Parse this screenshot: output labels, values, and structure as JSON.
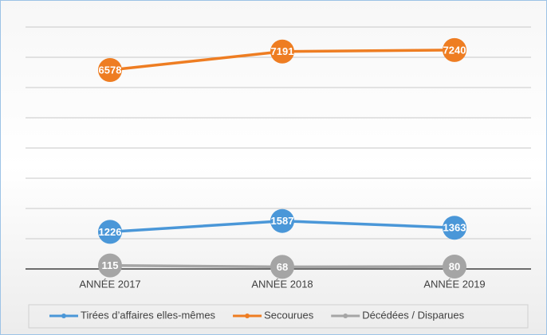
{
  "chart_data": {
    "type": "line",
    "categories": [
      "ANNÉE 2017",
      "ANNÉE 2018",
      "ANNÉE 2019"
    ],
    "series": [
      {
        "name": "Tirées d’affaires elles-mêmes",
        "color": "#4a97d8",
        "values": [
          1226,
          1587,
          1363
        ]
      },
      {
        "name": "Secourues",
        "color": "#ee7d22",
        "values": [
          6578,
          7191,
          7240
        ]
      },
      {
        "name": "Décédées / Disparues",
        "color": "#a5a5a5",
        "values": [
          115,
          68,
          80
        ]
      }
    ],
    "ylim": [
      0,
      8000
    ],
    "yticks": [
      0,
      1000,
      2000,
      3000,
      4000,
      5000,
      6000,
      7000,
      8000
    ],
    "grid": true,
    "legend": "bottom"
  }
}
